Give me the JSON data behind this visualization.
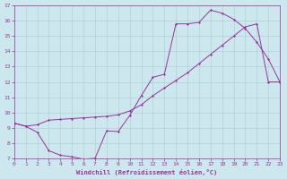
{
  "background_color": "#cce8ee",
  "grid_color": "#aacccc",
  "line_color": "#993399",
  "xlim": [
    0,
    23
  ],
  "ylim": [
    7,
    17
  ],
  "xticks": [
    0,
    1,
    2,
    3,
    4,
    5,
    6,
    7,
    8,
    9,
    10,
    11,
    12,
    13,
    14,
    15,
    16,
    17,
    18,
    19,
    20,
    21,
    22,
    23
  ],
  "yticks": [
    7,
    8,
    9,
    10,
    11,
    12,
    13,
    14,
    15,
    16,
    17
  ],
  "curve1_x": [
    0,
    1,
    2,
    3,
    4,
    5,
    6,
    7,
    8,
    9,
    10,
    11,
    12,
    13,
    14,
    15,
    16,
    17,
    18,
    19,
    20,
    21,
    22,
    23
  ],
  "curve1_y": [
    9.3,
    9.1,
    8.7,
    7.5,
    7.2,
    7.1,
    6.95,
    7.0,
    8.8,
    8.75,
    9.8,
    11.1,
    12.3,
    12.5,
    15.8,
    15.8,
    15.9,
    16.7,
    16.5,
    16.1,
    15.5,
    14.6,
    13.5,
    12.0
  ],
  "curve2_x": [
    0,
    1,
    2,
    3,
    4,
    5,
    6,
    7,
    8,
    9,
    10,
    11,
    12,
    13,
    14,
    15,
    16,
    17,
    18,
    19,
    20,
    21,
    22,
    23
  ],
  "curve2_y": [
    9.3,
    9.1,
    9.2,
    9.5,
    9.55,
    9.6,
    9.65,
    9.7,
    9.75,
    9.85,
    10.1,
    10.5,
    11.1,
    11.6,
    12.1,
    12.6,
    13.2,
    13.8,
    14.4,
    15.0,
    15.6,
    15.8,
    12.0,
    12.0
  ],
  "xlabel": "Windchill (Refroidissement éolien,°C)",
  "marker": "D",
  "markersize": 1.5,
  "linewidth": 0.7,
  "tick_fontsize": 4.5,
  "xlabel_fontsize": 5.0
}
